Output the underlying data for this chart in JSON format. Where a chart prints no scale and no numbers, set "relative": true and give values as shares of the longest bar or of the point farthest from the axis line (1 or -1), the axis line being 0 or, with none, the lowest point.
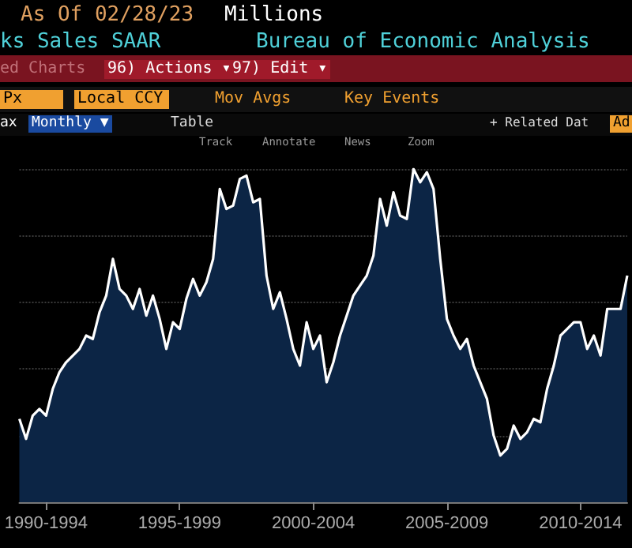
{
  "chart_data": {
    "type": "area",
    "relative": true,
    "title": "ks Sales SAAR",
    "annotations": [
      "As Of 02/28/23",
      "Millions",
      "Bureau of Economic Analysis",
      "ed Charts",
      "96) Actions ▾",
      "97) Edit ▾",
      "Px",
      "Local CCY",
      "Mov Avgs",
      "Key Events",
      "ax",
      "Monthly ▼",
      "Table",
      "+ Related Dat",
      "Ad",
      "Track",
      "Annotate",
      "News",
      "Zoom"
    ],
    "categories": [
      null,
      null,
      null,
      null,
      "1990-1994",
      null,
      null,
      null,
      null,
      null,
      null,
      null,
      null,
      null,
      null,
      null,
      null,
      null,
      null,
      null,
      null,
      null,
      null,
      null,
      "1995-1999",
      null,
      null,
      null,
      null,
      null,
      null,
      null,
      null,
      null,
      null,
      null,
      null,
      null,
      null,
      null,
      null,
      null,
      null,
      null,
      "2000-2004",
      null,
      null,
      null,
      null,
      null,
      null,
      null,
      null,
      null,
      null,
      null,
      null,
      null,
      null,
      null,
      null,
      null,
      null,
      null,
      "2005-2009",
      null,
      null,
      null,
      null,
      null,
      null,
      null,
      null,
      null,
      null,
      null,
      null,
      null,
      null,
      null,
      null,
      null,
      null,
      null,
      "2010-2014",
      null,
      null,
      null,
      null,
      null,
      null,
      null
    ],
    "grid": "y",
    "series": [
      {
        "color": "#ffffff",
        "values": [
          0.25,
          0.19,
          0.26,
          0.28,
          0.26,
          0.34,
          0.39,
          0.42,
          0.44,
          0.46,
          0.5,
          0.49,
          0.57,
          0.62,
          0.73,
          0.64,
          0.62,
          0.58,
          0.64,
          0.56,
          0.62,
          0.55,
          0.46,
          0.54,
          0.52,
          0.61,
          0.67,
          0.62,
          0.66,
          0.73,
          0.94,
          0.88,
          0.89,
          0.97,
          0.98,
          0.9,
          0.91,
          0.68,
          0.58,
          0.63,
          0.55,
          0.46,
          0.41,
          0.54,
          0.46,
          0.5,
          0.36,
          0.42,
          0.5,
          0.56,
          0.62,
          0.65,
          0.68,
          0.74,
          0.91,
          0.83,
          0.93,
          0.86,
          0.85,
          1,
          0.96,
          0.99,
          0.94,
          0.73,
          0.55,
          0.5,
          0.46,
          0.49,
          0.41,
          0.36,
          0.31,
          0.2,
          0.14,
          0.16,
          0.23,
          0.19,
          0.21,
          0.25,
          0.24,
          0.34,
          0.41,
          0.5,
          0.52,
          0.54,
          0.54,
          0.46,
          0.5,
          0.44,
          0.58,
          0.58,
          0.58,
          0.68
        ]
      }
    ]
  }
}
